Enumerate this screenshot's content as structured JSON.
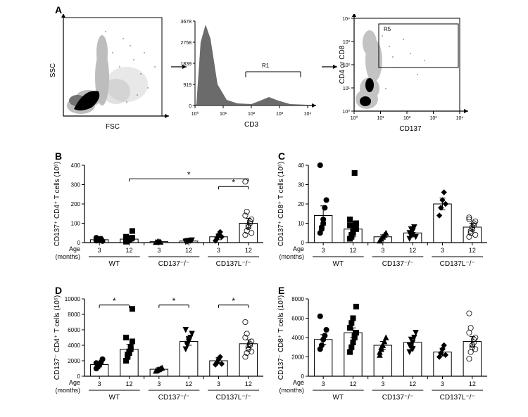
{
  "panels": {
    "A": "A",
    "B": "B",
    "C": "C",
    "D": "D",
    "E": "E"
  },
  "facs": {
    "scatter": {
      "xlabel": "FSC",
      "ylabel": "SSC"
    },
    "histo": {
      "xlabel": "CD3",
      "ymax": 3678,
      "yticks": [
        0,
        919,
        1839,
        2758,
        3678
      ],
      "xticks_log": [
        "10⁰",
        "10¹",
        "10²",
        "10³",
        "10⁴"
      ],
      "gate_label": "R1"
    },
    "dot2": {
      "xlabel": "CD137",
      "ylabel": "CD4 or CD8",
      "xticks_log": [
        "10⁰",
        "10¹",
        "10²",
        "10³",
        "10⁴"
      ],
      "yticks_log": [
        "10⁰",
        "10¹",
        "10²",
        "10³",
        "10⁴"
      ],
      "gate_label": "R5"
    }
  },
  "scatter_charts": {
    "colors": {
      "bg": "#ffffff",
      "axis": "#000000",
      "bar_outline": "#000000",
      "sig": "#000000"
    },
    "age_label": "Age\n(months)",
    "age_ticks": [
      "3",
      "12",
      "3",
      "12",
      "3",
      "12"
    ],
    "genotypes": [
      "WT",
      "CD137⁻/⁻",
      "CD137L⁻/⁻"
    ],
    "markers": [
      "circle-filled",
      "square-filled",
      "triangle-filled",
      "invtriangle-filled",
      "diamond-filled",
      "circle-open"
    ],
    "marker_size": 4,
    "bar_width": 0.6,
    "bar_fill": "none",
    "sig_star": "*",
    "B": {
      "ylabel": "CD137⁺ CD4⁺ T cells (10⁵)",
      "ylim": [
        0,
        400
      ],
      "ytick_step": 100,
      "means": [
        15,
        18,
        5,
        8,
        30,
        100
      ],
      "sem": [
        5,
        6,
        3,
        4,
        15,
        25
      ],
      "points": [
        [
          10,
          12,
          18,
          20,
          8,
          25
        ],
        [
          5,
          10,
          15,
          20,
          25,
          30,
          12,
          18,
          22,
          60,
          14
        ],
        [
          3,
          5,
          6,
          4
        ],
        [
          4,
          5,
          8,
          10,
          12,
          6,
          9,
          7
        ],
        [
          10,
          25,
          40,
          55,
          30
        ],
        [
          40,
          60,
          80,
          100,
          120,
          140,
          160,
          90,
          110,
          50,
          315
        ]
      ],
      "sig_bars": [
        {
          "from": 1,
          "to": 5,
          "y": 330
        },
        {
          "from": 4,
          "to": 5,
          "y": 290
        }
      ]
    },
    "C": {
      "ylabel": "CD137⁺ CD8⁺ T cells (10⁵)",
      "ylim": [
        0,
        40
      ],
      "ytick_step": 10,
      "means": [
        14,
        7,
        3,
        5,
        20,
        8
      ],
      "sem": [
        5,
        4,
        1,
        2,
        3,
        2
      ],
      "points": [
        [
          5,
          8,
          12,
          18,
          22,
          40,
          7,
          10
        ],
        [
          2,
          4,
          6,
          8,
          10,
          12,
          3,
          5,
          36,
          7,
          9
        ],
        [
          1,
          2,
          3,
          4,
          5
        ],
        [
          2,
          4,
          6,
          8,
          3,
          5,
          7,
          4
        ],
        [
          14,
          18,
          22,
          26,
          20
        ],
        [
          3,
          5,
          7,
          9,
          11,
          13,
          6,
          8,
          10,
          4,
          12
        ]
      ],
      "sig_bars": []
    },
    "D": {
      "ylabel": "CD137⁻ CD4⁺ T cells (10⁵)",
      "ylim": [
        0,
        10000
      ],
      "ytick_step": 2000,
      "means": [
        1500,
        3500,
        900,
        4500,
        2000,
        4200
      ],
      "sem": [
        300,
        600,
        200,
        500,
        400,
        500
      ],
      "points": [
        [
          1000,
          1200,
          1500,
          1800,
          2200,
          1700
        ],
        [
          2000,
          2500,
          3000,
          3500,
          4500,
          5000,
          2800,
          3200,
          3800,
          8700
        ],
        [
          700,
          800,
          900,
          1000,
          1100
        ],
        [
          3500,
          4000,
          4500,
          5000,
          5500,
          6000,
          4200,
          4800
        ],
        [
          1500,
          1800,
          2200,
          2500,
          1600
        ],
        [
          2500,
          3000,
          3500,
          4000,
          4500,
          5000,
          5500,
          3800,
          4200,
          3200,
          7000
        ]
      ],
      "sig_bars": [
        {
          "from": 0,
          "to": 1,
          "y": 9200
        },
        {
          "from": 2,
          "to": 3,
          "y": 9200
        },
        {
          "from": 4,
          "to": 5,
          "y": 9200
        }
      ]
    },
    "E": {
      "ylabel": "CD137⁻ CD8⁺ T cells (10⁵)",
      "ylim": [
        0,
        8000
      ],
      "ytick_step": 2000,
      "means": [
        3800,
        4500,
        3200,
        3500,
        2500,
        3600
      ],
      "sem": [
        500,
        500,
        400,
        400,
        400,
        500
      ],
      "points": [
        [
          2800,
          3200,
          3800,
          4200,
          4800,
          6200
        ],
        [
          2500,
          3000,
          3500,
          4000,
          4500,
          5000,
          5500,
          6000,
          4200,
          7200
        ],
        [
          2200,
          2800,
          3200,
          3600,
          4000,
          2500,
          3000
        ],
        [
          2500,
          3000,
          3500,
          4000,
          4500,
          3200,
          3800,
          2800
        ],
        [
          2000,
          2400,
          2800,
          3200,
          2200
        ],
        [
          1800,
          2500,
          3000,
          3500,
          4000,
          4500,
          5000,
          3200,
          3800,
          2800,
          6500
        ]
      ],
      "sig_bars": []
    }
  }
}
